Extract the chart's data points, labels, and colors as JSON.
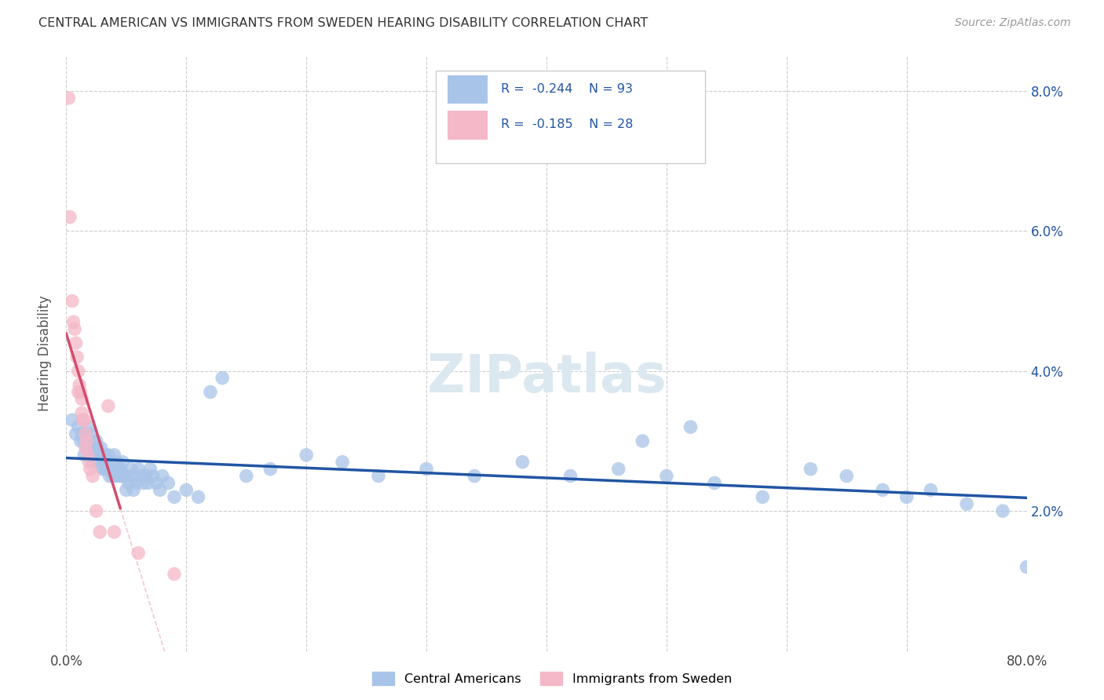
{
  "title": "CENTRAL AMERICAN VS IMMIGRANTS FROM SWEDEN HEARING DISABILITY CORRELATION CHART",
  "source": "Source: ZipAtlas.com",
  "ylabel": "Hearing Disability",
  "xmin": 0.0,
  "xmax": 0.8,
  "ymin": 0.0,
  "ymax": 0.085,
  "blue_color": "#a8c4e8",
  "pink_color": "#f4b8c8",
  "blue_line_color": "#2155a3",
  "pink_line_color": "#d44c6e",
  "pink_dash_color": "#f4b8c8",
  "watermark_color": "#dce8f0",
  "legend_label_blue": "Central Americans",
  "legend_label_pink": "Immigrants from Sweden",
  "blue_scatter_x": [
    0.005,
    0.008,
    0.01,
    0.012,
    0.013,
    0.015,
    0.015,
    0.016,
    0.017,
    0.018,
    0.019,
    0.02,
    0.02,
    0.021,
    0.022,
    0.022,
    0.023,
    0.024,
    0.025,
    0.025,
    0.026,
    0.027,
    0.028,
    0.029,
    0.03,
    0.03,
    0.031,
    0.032,
    0.032,
    0.033,
    0.034,
    0.035,
    0.035,
    0.036,
    0.037,
    0.038,
    0.039,
    0.04,
    0.04,
    0.041,
    0.042,
    0.043,
    0.044,
    0.045,
    0.046,
    0.047,
    0.048,
    0.05,
    0.05,
    0.052,
    0.054,
    0.055,
    0.056,
    0.058,
    0.06,
    0.062,
    0.064,
    0.066,
    0.068,
    0.07,
    0.072,
    0.075,
    0.078,
    0.08,
    0.085,
    0.09,
    0.1,
    0.11,
    0.12,
    0.13,
    0.15,
    0.17,
    0.2,
    0.23,
    0.26,
    0.3,
    0.34,
    0.38,
    0.42,
    0.46,
    0.5,
    0.54,
    0.58,
    0.62,
    0.65,
    0.68,
    0.7,
    0.72,
    0.75,
    0.78,
    0.8,
    0.48,
    0.52
  ],
  "blue_scatter_y": [
    0.033,
    0.031,
    0.032,
    0.03,
    0.031,
    0.03,
    0.028,
    0.031,
    0.029,
    0.03,
    0.032,
    0.029,
    0.031,
    0.028,
    0.03,
    0.027,
    0.029,
    0.028,
    0.03,
    0.027,
    0.029,
    0.028,
    0.027,
    0.029,
    0.028,
    0.026,
    0.027,
    0.026,
    0.028,
    0.027,
    0.026,
    0.028,
    0.026,
    0.025,
    0.027,
    0.026,
    0.025,
    0.026,
    0.028,
    0.025,
    0.027,
    0.026,
    0.025,
    0.026,
    0.025,
    0.027,
    0.025,
    0.025,
    0.023,
    0.024,
    0.026,
    0.025,
    0.023,
    0.024,
    0.026,
    0.025,
    0.024,
    0.025,
    0.024,
    0.026,
    0.025,
    0.024,
    0.023,
    0.025,
    0.024,
    0.022,
    0.023,
    0.022,
    0.037,
    0.039,
    0.025,
    0.026,
    0.028,
    0.027,
    0.025,
    0.026,
    0.025,
    0.027,
    0.025,
    0.026,
    0.025,
    0.024,
    0.022,
    0.026,
    0.025,
    0.023,
    0.022,
    0.023,
    0.021,
    0.02,
    0.012,
    0.03,
    0.032
  ],
  "pink_scatter_x": [
    0.002,
    0.003,
    0.005,
    0.006,
    0.007,
    0.008,
    0.009,
    0.01,
    0.01,
    0.011,
    0.012,
    0.013,
    0.013,
    0.014,
    0.015,
    0.016,
    0.016,
    0.017,
    0.018,
    0.019,
    0.02,
    0.022,
    0.025,
    0.028,
    0.035,
    0.04,
    0.06,
    0.09
  ],
  "pink_scatter_y": [
    0.079,
    0.062,
    0.05,
    0.047,
    0.046,
    0.044,
    0.042,
    0.04,
    0.037,
    0.038,
    0.037,
    0.036,
    0.034,
    0.033,
    0.033,
    0.031,
    0.029,
    0.03,
    0.028,
    0.027,
    0.026,
    0.025,
    0.02,
    0.017,
    0.035,
    0.017,
    0.014,
    0.011
  ]
}
